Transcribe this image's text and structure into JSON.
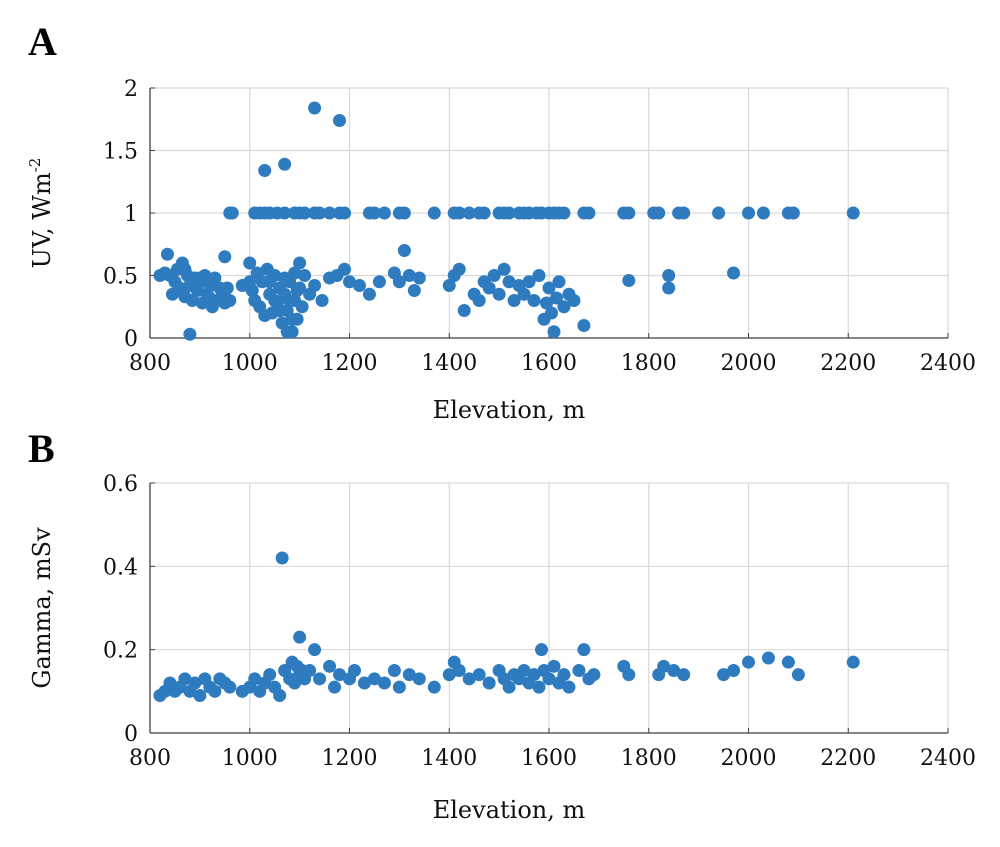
{
  "chart_data": [
    {
      "panel": "A",
      "type": "scatter",
      "xlabel": "Elevation, m",
      "ylabel": "UV, Wm",
      "ylabel_superscript": "-2",
      "xlim": [
        800,
        2400
      ],
      "ylim": [
        0,
        2
      ],
      "xticks": [
        "800",
        "1000",
        "1200",
        "1400",
        "1600",
        "1800",
        "2000",
        "2200",
        "2400"
      ],
      "yticks": [
        "0",
        "0.5",
        "1",
        "1.5",
        "2"
      ],
      "grid": true,
      "color": "#2e7bc0",
      "points": [
        [
          960,
          1
        ],
        [
          965,
          1
        ],
        [
          1010,
          1
        ],
        [
          1020,
          1
        ],
        [
          1030,
          1
        ],
        [
          1040,
          1
        ],
        [
          1055,
          1
        ],
        [
          1070,
          1
        ],
        [
          1090,
          1
        ],
        [
          1100,
          1
        ],
        [
          1110,
          1
        ],
        [
          1130,
          1
        ],
        [
          1140,
          1
        ],
        [
          1160,
          1
        ],
        [
          1180,
          1
        ],
        [
          1190,
          1
        ],
        [
          1240,
          1
        ],
        [
          1250,
          1
        ],
        [
          1270,
          1
        ],
        [
          1300,
          1
        ],
        [
          1310,
          1
        ],
        [
          1370,
          1
        ],
        [
          1410,
          1
        ],
        [
          1420,
          1
        ],
        [
          1440,
          1
        ],
        [
          1460,
          1
        ],
        [
          1470,
          1
        ],
        [
          1500,
          1
        ],
        [
          1510,
          1
        ],
        [
          1520,
          1
        ],
        [
          1540,
          1
        ],
        [
          1550,
          1
        ],
        [
          1560,
          1
        ],
        [
          1575,
          1
        ],
        [
          1585,
          1
        ],
        [
          1600,
          1
        ],
        [
          1610,
          1
        ],
        [
          1620,
          1
        ],
        [
          1630,
          1
        ],
        [
          1670,
          1
        ],
        [
          1680,
          1
        ],
        [
          1750,
          1
        ],
        [
          1760,
          1
        ],
        [
          1810,
          1
        ],
        [
          1820,
          1
        ],
        [
          1860,
          1
        ],
        [
          1870,
          1
        ],
        [
          1940,
          1
        ],
        [
          2000,
          1
        ],
        [
          2030,
          1
        ],
        [
          2080,
          1
        ],
        [
          2090,
          1
        ],
        [
          2210,
          1
        ],
        [
          1030,
          1.34
        ],
        [
          1070,
          1.39
        ],
        [
          1130,
          1.84
        ],
        [
          1180,
          1.74
        ],
        [
          1310,
          0.7
        ],
        [
          1970,
          0.52
        ],
        [
          1840,
          0.5
        ],
        [
          1840,
          0.4
        ],
        [
          1760,
          0.46
        ],
        [
          1670,
          0.1
        ],
        [
          880,
          0.03
        ],
        [
          820,
          0.5
        ],
        [
          830,
          0.52
        ],
        [
          835,
          0.67
        ],
        [
          840,
          0.5
        ],
        [
          845,
          0.35
        ],
        [
          850,
          0.45
        ],
        [
          855,
          0.55
        ],
        [
          860,
          0.4
        ],
        [
          865,
          0.6
        ],
        [
          870,
          0.33
        ],
        [
          875,
          0.5
        ],
        [
          880,
          0.42
        ],
        [
          885,
          0.3
        ],
        [
          890,
          0.48
        ],
        [
          895,
          0.38
        ],
        [
          900,
          0.45
        ],
        [
          905,
          0.28
        ],
        [
          910,
          0.5
        ],
        [
          915,
          0.35
        ],
        [
          920,
          0.42
        ],
        [
          925,
          0.25
        ],
        [
          930,
          0.48
        ],
        [
          935,
          0.3
        ],
        [
          940,
          0.4
        ],
        [
          945,
          0.35
        ],
        [
          950,
          0.28
        ],
        [
          955,
          0.4
        ],
        [
          960,
          0.3
        ],
        [
          870,
          0.55
        ],
        [
          900,
          0.48
        ],
        [
          920,
          0.32
        ],
        [
          950,
          0.65
        ],
        [
          985,
          0.42
        ],
        [
          1000,
          0.6
        ],
        [
          1000,
          0.45
        ],
        [
          1005,
          0.38
        ],
        [
          1010,
          0.3
        ],
        [
          1015,
          0.52
        ],
        [
          1020,
          0.25
        ],
        [
          1025,
          0.45
        ],
        [
          1030,
          0.18
        ],
        [
          1035,
          0.55
        ],
        [
          1040,
          0.35
        ],
        [
          1045,
          0.2
        ],
        [
          1050,
          0.5
        ],
        [
          1055,
          0.28
        ],
        [
          1060,
          0.4
        ],
        [
          1065,
          0.12
        ],
        [
          1070,
          0.35
        ],
        [
          1075,
          0.22
        ],
        [
          1080,
          0.45
        ],
        [
          1085,
          0.05
        ],
        [
          1090,
          0.3
        ],
        [
          1095,
          0.15
        ],
        [
          1100,
          0.4
        ],
        [
          1105,
          0.25
        ],
        [
          1110,
          0.5
        ],
        [
          1040,
          0.45
        ],
        [
          1050,
          0.3
        ],
        [
          1060,
          0.22
        ],
        [
          1070,
          0.48
        ],
        [
          1080,
          0.3
        ],
        [
          1090,
          0.52
        ],
        [
          1100,
          0.6
        ],
        [
          1075,
          0.05
        ],
        [
          1085,
          0.15
        ],
        [
          1095,
          0.38
        ],
        [
          1120,
          0.35
        ],
        [
          1130,
          0.42
        ],
        [
          1145,
          0.3
        ],
        [
          1160,
          0.48
        ],
        [
          1175,
          0.5
        ],
        [
          1190,
          0.55
        ],
        [
          1200,
          0.45
        ],
        [
          1220,
          0.42
        ],
        [
          1240,
          0.35
        ],
        [
          1260,
          0.45
        ],
        [
          1290,
          0.52
        ],
        [
          1300,
          0.45
        ],
        [
          1320,
          0.5
        ],
        [
          1330,
          0.38
        ],
        [
          1340,
          0.48
        ],
        [
          1400,
          0.42
        ],
        [
          1410,
          0.5
        ],
        [
          1420,
          0.55
        ],
        [
          1430,
          0.22
        ],
        [
          1450,
          0.35
        ],
        [
          1460,
          0.3
        ],
        [
          1470,
          0.45
        ],
        [
          1480,
          0.4
        ],
        [
          1490,
          0.5
        ],
        [
          1500,
          0.35
        ],
        [
          1510,
          0.55
        ],
        [
          1520,
          0.45
        ],
        [
          1530,
          0.3
        ],
        [
          1540,
          0.42
        ],
        [
          1550,
          0.35
        ],
        [
          1560,
          0.45
        ],
        [
          1570,
          0.3
        ],
        [
          1580,
          0.5
        ],
        [
          1590,
          0.15
        ],
        [
          1595,
          0.28
        ],
        [
          1600,
          0.4
        ],
        [
          1605,
          0.2
        ],
        [
          1610,
          0.05
        ],
        [
          1615,
          0.32
        ],
        [
          1620,
          0.45
        ],
        [
          1630,
          0.25
        ],
        [
          1640,
          0.35
        ],
        [
          1650,
          0.3
        ]
      ]
    },
    {
      "panel": "B",
      "type": "scatter",
      "xlabel": "Elevation, m",
      "ylabel": "Gamma, mSv",
      "xlim": [
        800,
        2400
      ],
      "ylim": [
        0,
        0.6
      ],
      "xticks": [
        "800",
        "1000",
        "1200",
        "1400",
        "1600",
        "1800",
        "2000",
        "2200",
        "2400"
      ],
      "yticks": [
        "0",
        "0.2",
        "0.4",
        "0.6"
      ],
      "grid": true,
      "color": "#2e7bc0",
      "points": [
        [
          1065,
          0.42
        ],
        [
          1100,
          0.23
        ],
        [
          1130,
          0.2
        ],
        [
          1585,
          0.2
        ],
        [
          1670,
          0.2
        ],
        [
          820,
          0.09
        ],
        [
          830,
          0.1
        ],
        [
          840,
          0.12
        ],
        [
          850,
          0.1
        ],
        [
          860,
          0.11
        ],
        [
          870,
          0.13
        ],
        [
          880,
          0.1
        ],
        [
          890,
          0.12
        ],
        [
          900,
          0.09
        ],
        [
          910,
          0.13
        ],
        [
          920,
          0.11
        ],
        [
          930,
          0.1
        ],
        [
          940,
          0.13
        ],
        [
          950,
          0.12
        ],
        [
          960,
          0.11
        ],
        [
          985,
          0.1
        ],
        [
          1000,
          0.11
        ],
        [
          1010,
          0.13
        ],
        [
          1020,
          0.1
        ],
        [
          1030,
          0.12
        ],
        [
          1040,
          0.14
        ],
        [
          1050,
          0.11
        ],
        [
          1060,
          0.09
        ],
        [
          1070,
          0.15
        ],
        [
          1080,
          0.13
        ],
        [
          1085,
          0.17
        ],
        [
          1090,
          0.12
        ],
        [
          1095,
          0.16
        ],
        [
          1100,
          0.14
        ],
        [
          1105,
          0.15
        ],
        [
          1110,
          0.13
        ],
        [
          1120,
          0.15
        ],
        [
          1140,
          0.13
        ],
        [
          1160,
          0.16
        ],
        [
          1170,
          0.11
        ],
        [
          1180,
          0.14
        ],
        [
          1200,
          0.13
        ],
        [
          1210,
          0.15
        ],
        [
          1230,
          0.12
        ],
        [
          1250,
          0.13
        ],
        [
          1270,
          0.12
        ],
        [
          1290,
          0.15
        ],
        [
          1300,
          0.11
        ],
        [
          1320,
          0.14
        ],
        [
          1340,
          0.13
        ],
        [
          1370,
          0.11
        ],
        [
          1400,
          0.14
        ],
        [
          1410,
          0.17
        ],
        [
          1420,
          0.15
        ],
        [
          1440,
          0.13
        ],
        [
          1460,
          0.14
        ],
        [
          1480,
          0.12
        ],
        [
          1500,
          0.15
        ],
        [
          1510,
          0.13
        ],
        [
          1520,
          0.11
        ],
        [
          1530,
          0.14
        ],
        [
          1540,
          0.13
        ],
        [
          1550,
          0.15
        ],
        [
          1560,
          0.12
        ],
        [
          1570,
          0.14
        ],
        [
          1580,
          0.11
        ],
        [
          1590,
          0.15
        ],
        [
          1600,
          0.13
        ],
        [
          1610,
          0.16
        ],
        [
          1620,
          0.12
        ],
        [
          1630,
          0.14
        ],
        [
          1640,
          0.11
        ],
        [
          1660,
          0.15
        ],
        [
          1680,
          0.13
        ],
        [
          1690,
          0.14
        ],
        [
          1750,
          0.16
        ],
        [
          1760,
          0.14
        ],
        [
          1820,
          0.14
        ],
        [
          1830,
          0.16
        ],
        [
          1850,
          0.15
        ],
        [
          1870,
          0.14
        ],
        [
          1950,
          0.14
        ],
        [
          1970,
          0.15
        ],
        [
          2000,
          0.17
        ],
        [
          2040,
          0.18
        ],
        [
          2080,
          0.17
        ],
        [
          2100,
          0.14
        ],
        [
          2210,
          0.17
        ]
      ]
    }
  ]
}
